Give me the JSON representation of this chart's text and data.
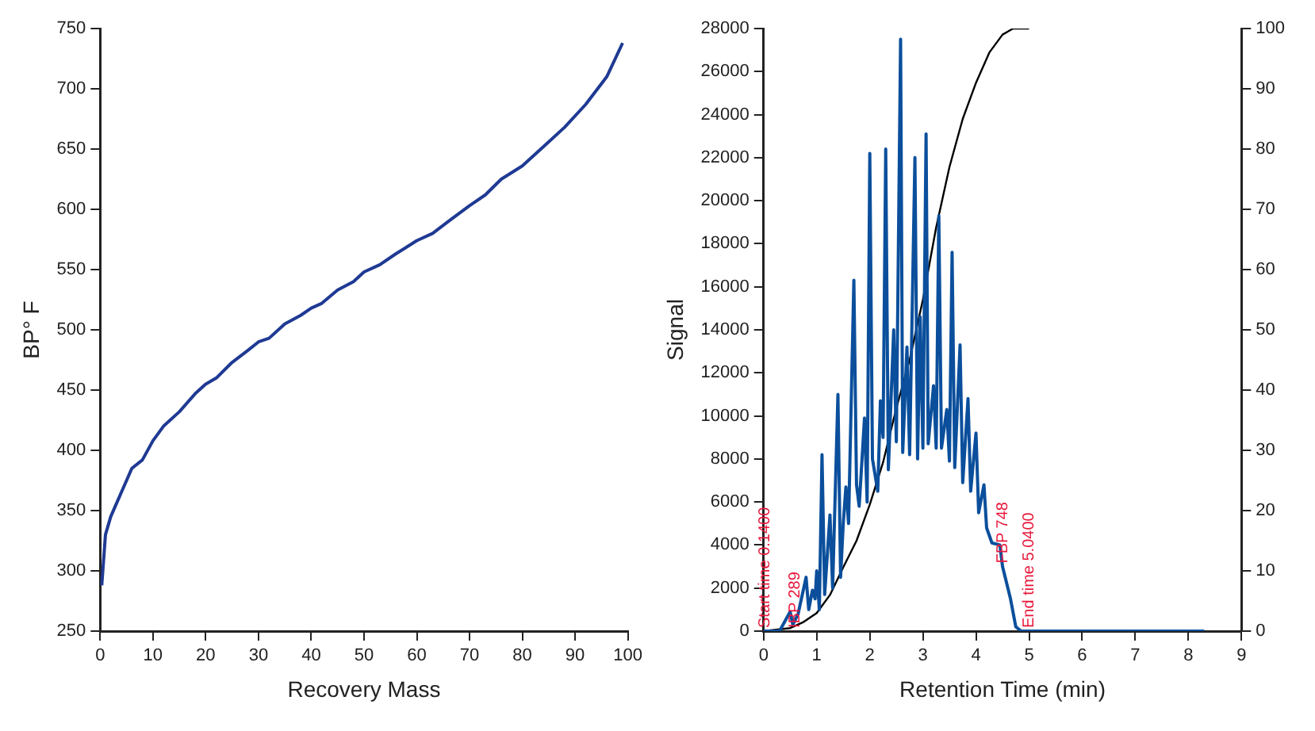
{
  "chart_data": [
    {
      "type": "line",
      "xlabel": "Recovery Mass",
      "ylabel": "BP° F",
      "xlim": [
        0,
        100
      ],
      "xticks": [
        0,
        10,
        20,
        30,
        40,
        50,
        60,
        70,
        80,
        90,
        100
      ],
      "ylim": [
        250,
        750
      ],
      "yticks": [
        250,
        300,
        350,
        400,
        450,
        500,
        550,
        600,
        650,
        700,
        750
      ],
      "grid": false,
      "legend": false,
      "marker": "none",
      "x": [
        0.3,
        1,
        2,
        3,
        5,
        6,
        8,
        10,
        12,
        15,
        18,
        20,
        22,
        25,
        28,
        30,
        32,
        35,
        38,
        40,
        42,
        45,
        48,
        50,
        53,
        56,
        60,
        63,
        66,
        70,
        73,
        76,
        80,
        84,
        88,
        92,
        96,
        99
      ],
      "series": [
        {
          "color": "#1f3a93",
          "values": [
            288,
            330,
            345,
            355,
            375,
            385,
            392,
            408,
            420,
            432,
            447,
            455,
            460,
            473,
            483,
            490,
            493,
            505,
            512,
            518,
            522,
            533,
            540,
            548,
            554,
            563,
            574,
            580,
            590,
            603,
            612,
            625,
            636,
            652,
            668,
            687,
            710,
            738
          ]
        }
      ]
    },
    {
      "type": "line",
      "xlabel": "Retention Time (min)",
      "ylabel": "Signal",
      "xlim": [
        0,
        9
      ],
      "xticks": [
        0,
        1,
        2,
        3,
        4,
        5,
        6,
        7,
        8,
        9
      ],
      "ylim": [
        0,
        28000
      ],
      "yticks": [
        0,
        2000,
        4000,
        6000,
        8000,
        10000,
        12000,
        14000,
        16000,
        18000,
        20000,
        22000,
        24000,
        26000,
        28000
      ],
      "y2lim": [
        0,
        100
      ],
      "y2ticks": [
        0,
        10,
        20,
        30,
        40,
        50,
        60,
        70,
        80,
        90,
        100
      ],
      "grid": false,
      "legend": false,
      "marker": "none",
      "annotations": [
        {
          "text": "Start time 0.1400",
          "x": 0.02,
          "y": 0
        },
        {
          "text": "IBP 289",
          "x": 0.6,
          "y": 0
        },
        {
          "text": "FBP 748",
          "x": 4.5,
          "y": 3000
        },
        {
          "text": "End time 5.0400",
          "x": 5.0,
          "y": 0
        }
      ],
      "series": [
        {
          "color": "#0b4f9c",
          "x": [
            0,
            0.3,
            0.5,
            0.55,
            0.65,
            0.8,
            0.85,
            0.92,
            0.97,
            1.0,
            1.05,
            1.1,
            1.15,
            1.25,
            1.3,
            1.4,
            1.45,
            1.5,
            1.55,
            1.6,
            1.7,
            1.75,
            1.8,
            1.9,
            1.95,
            2.0,
            2.05,
            2.15,
            2.2,
            2.25,
            2.3,
            2.35,
            2.45,
            2.5,
            2.58,
            2.62,
            2.7,
            2.75,
            2.85,
            2.9,
            2.95,
            3.0,
            3.06,
            3.1,
            3.2,
            3.25,
            3.3,
            3.35,
            3.45,
            3.5,
            3.55,
            3.6,
            3.7,
            3.75,
            3.85,
            3.9,
            4.0,
            4.05,
            4.15,
            4.2,
            4.3,
            4.45,
            4.5,
            4.65,
            4.75,
            4.85,
            8.3
          ],
          "values": [
            0,
            0,
            900,
            300,
            800,
            2500,
            1000,
            1900,
            1500,
            2800,
            1000,
            8200,
            1700,
            5400,
            2000,
            11000,
            2500,
            5000,
            6700,
            5000,
            16300,
            6800,
            5800,
            9900,
            6000,
            22200,
            8000,
            6500,
            10700,
            9000,
            22400,
            7500,
            14000,
            8800,
            27500,
            8300,
            13200,
            8200,
            22000,
            8000,
            14600,
            8500,
            23100,
            8700,
            11400,
            8500,
            19300,
            8500,
            10300,
            7900,
            17600,
            7600,
            13300,
            6900,
            10800,
            6500,
            9200,
            5500,
            6800,
            4800,
            4100,
            4000,
            3000,
            1500,
            200,
            0,
            0
          ]
        },
        {
          "color": "#000000",
          "axis": "y2",
          "x": [
            0,
            0.5,
            0.75,
            1.0,
            1.25,
            1.5,
            1.75,
            2.0,
            2.25,
            2.5,
            2.75,
            3.0,
            3.25,
            3.5,
            3.75,
            4.0,
            4.25,
            4.5,
            4.7,
            5.0
          ],
          "values": [
            0,
            0.5,
            1.5,
            3,
            6,
            10.6,
            15,
            21,
            28,
            37,
            45,
            55,
            67,
            77,
            85,
            91,
            96,
            99,
            100,
            100
          ]
        }
      ]
    }
  ]
}
